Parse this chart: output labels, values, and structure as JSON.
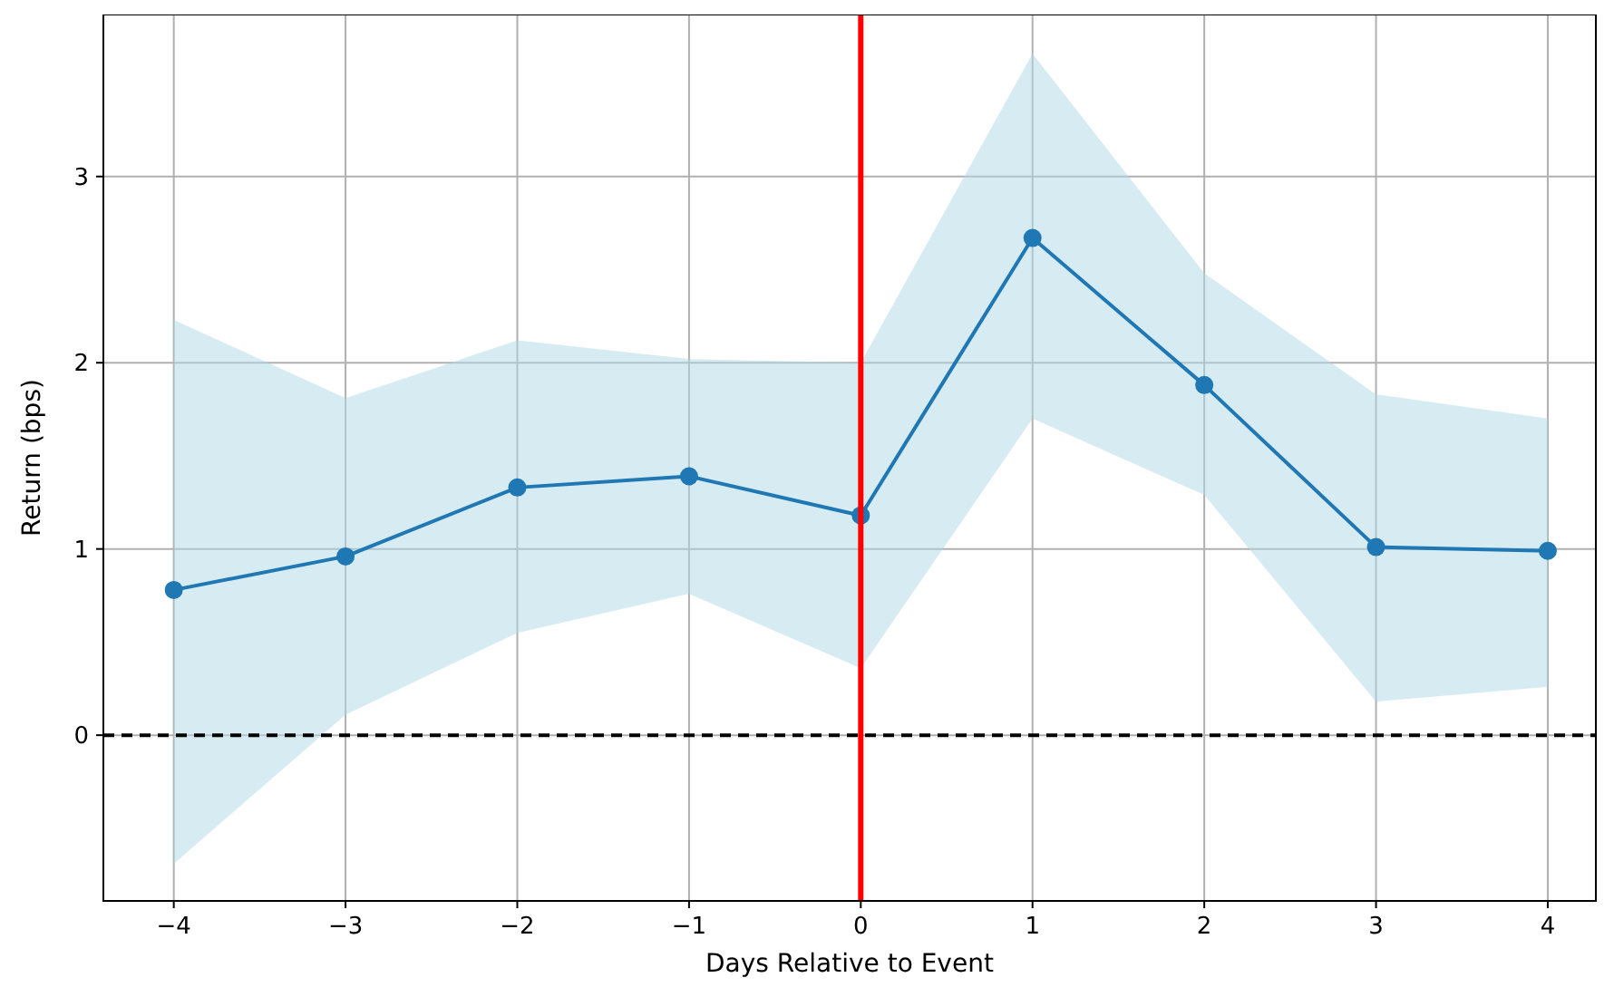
{
  "chart_data": {
    "type": "line",
    "xlabel": "Days Relative to Event",
    "ylabel": "Return (bps)",
    "x": [
      -4,
      -3,
      -2,
      -1,
      0,
      1,
      2,
      3,
      4
    ],
    "series": [
      {
        "color": "#1f77b4",
        "values": [
          0.78,
          0.96,
          1.33,
          1.39,
          1.18,
          2.67,
          1.88,
          1.01,
          0.99
        ],
        "lower": [
          -0.69,
          0.11,
          0.55,
          0.76,
          0.36,
          1.7,
          1.29,
          0.18,
          0.26
        ],
        "upper": [
          2.23,
          1.81,
          2.12,
          2.02,
          2.0,
          3.66,
          2.48,
          1.83,
          1.7
        ]
      }
    ],
    "xlim": [
      -4.41,
      4.28
    ],
    "ylim": [
      -0.89,
      3.87
    ],
    "xticks": [
      {
        "value": -4,
        "label": "−4"
      },
      {
        "value": -3,
        "label": "−3"
      },
      {
        "value": -2,
        "label": "−2"
      },
      {
        "value": -1,
        "label": "−1"
      },
      0,
      1,
      2,
      3,
      4
    ],
    "yticks": [
      0,
      1,
      2,
      3
    ],
    "ref_lines": [
      {
        "axis": "y",
        "value": 0,
        "color": "#000000",
        "line_style": "dashed"
      },
      {
        "axis": "x",
        "value": 0,
        "color": "#ff0000",
        "line_style": "solid"
      }
    ],
    "grid": true,
    "marker": "circle",
    "line_style": "solid"
  }
}
